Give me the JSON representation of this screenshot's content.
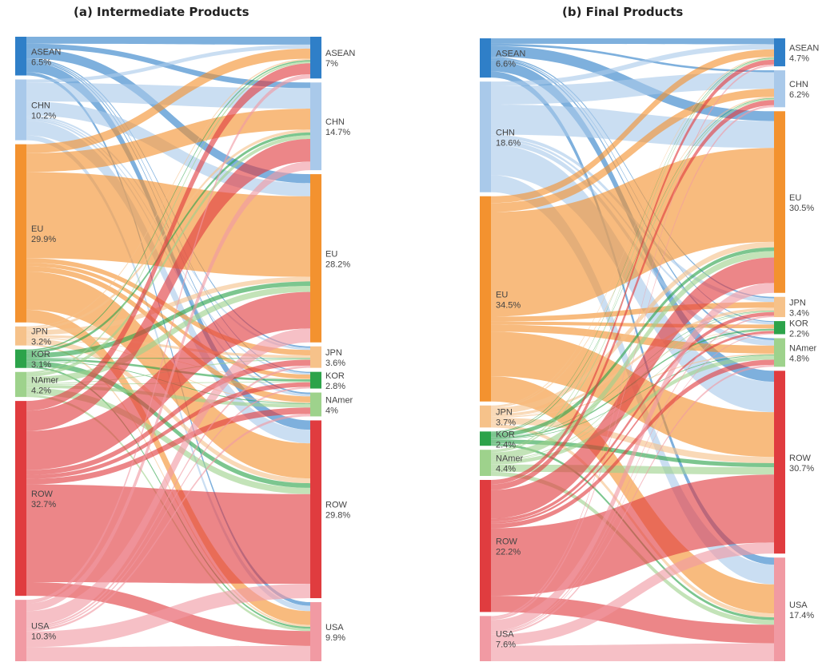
{
  "colors": {
    "ASEAN": "#2f7fc8",
    "CHN": "#a9c9ea",
    "EU": "#f3922f",
    "JPN": "#f6c28a",
    "KOR": "#2ca34a",
    "NAmer": "#9ed28c",
    "ROW": "#e03c3f",
    "USA": "#f19aa3"
  },
  "panels": [
    {
      "title": "(a) Intermediate Products",
      "sources": [
        {
          "name": "ASEAN",
          "share": "6.5%"
        },
        {
          "name": "CHN",
          "share": "10.2%"
        },
        {
          "name": "EU",
          "share": "29.9%"
        },
        {
          "name": "JPN",
          "share": "3.2%"
        },
        {
          "name": "KOR",
          "share": "3.1%"
        },
        {
          "name": "NAmer",
          "share": "4.2%"
        },
        {
          "name": "ROW",
          "share": "32.7%"
        },
        {
          "name": "USA",
          "share": "10.3%"
        }
      ],
      "targets": [
        {
          "name": "ASEAN",
          "share": "7%"
        },
        {
          "name": "CHN",
          "share": "14.7%"
        },
        {
          "name": "EU",
          "share": "28.2%"
        },
        {
          "name": "JPN",
          "share": "3.6%"
        },
        {
          "name": "KOR",
          "share": "2.8%"
        },
        {
          "name": "NAmer",
          "share": "4%"
        },
        {
          "name": "ROW",
          "share": "29.8%"
        },
        {
          "name": "USA",
          "share": "9.9%"
        }
      ]
    },
    {
      "title": "(b) Final Products",
      "sources": [
        {
          "name": "ASEAN",
          "share": "6.6%"
        },
        {
          "name": "CHN",
          "share": "18.6%"
        },
        {
          "name": "EU",
          "share": "34.5%"
        },
        {
          "name": "JPN",
          "share": "3.7%"
        },
        {
          "name": "KOR",
          "share": "2.4%"
        },
        {
          "name": "NAmer",
          "share": "4.4%"
        },
        {
          "name": "ROW",
          "share": "22.2%"
        },
        {
          "name": "USA",
          "share": "7.6%"
        }
      ],
      "targets": [
        {
          "name": "ASEAN",
          "share": "4.7%"
        },
        {
          "name": "CHN",
          "share": "6.2%"
        },
        {
          "name": "EU",
          "share": "30.5%"
        },
        {
          "name": "JPN",
          "share": "3.4%"
        },
        {
          "name": "KOR",
          "share": "2.2%"
        },
        {
          "name": "NAmer",
          "share": "4.8%"
        },
        {
          "name": "ROW",
          "share": "30.7%"
        },
        {
          "name": "USA",
          "share": "17.4%"
        }
      ]
    }
  ]
}
